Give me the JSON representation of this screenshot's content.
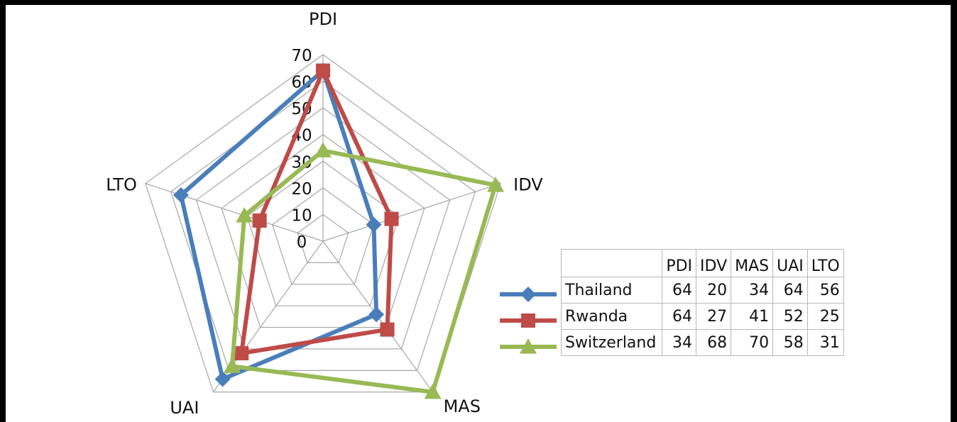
{
  "chart_data": {
    "type": "radar",
    "axes": [
      "PDI",
      "IDV",
      "MAS",
      "UAI",
      "LTO"
    ],
    "rlim": [
      0,
      70
    ],
    "ticks": [
      "0",
      "10",
      "20",
      "30",
      "40",
      "50",
      "60",
      "70"
    ],
    "grid": true,
    "legend": "data-table bottom-right",
    "series": [
      {
        "name": "Thailand",
        "values": [
          64,
          20,
          34,
          64,
          56
        ],
        "color": "#4a7ebb",
        "marker": "diamond"
      },
      {
        "name": "Rwanda",
        "values": [
          64,
          27,
          41,
          52,
          25
        ],
        "color": "#be4b48",
        "marker": "square"
      },
      {
        "name": "Switzerland",
        "values": [
          34,
          68,
          70,
          58,
          31
        ],
        "color": "#98b954",
        "marker": "triangle"
      }
    ]
  }
}
